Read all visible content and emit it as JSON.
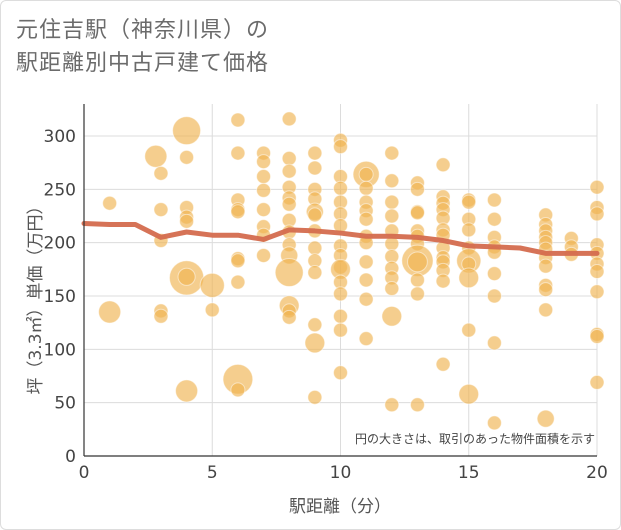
{
  "chart_data": {
    "type": "scatter",
    "title_line1": "元住吉駅（神奈川県）の",
    "title_line2": "駅距離別中古戸建て価格",
    "xlabel": "駅距離（分）",
    "ylabel": "坪（3.3㎡）単価（万円）",
    "annotation": "円の大きさは、取引のあった物件面積を示す",
    "xlim": [
      0,
      20
    ],
    "ylim": [
      0,
      330
    ],
    "xticks": [
      0,
      5,
      10,
      15,
      20
    ],
    "yticks": [
      0,
      50,
      100,
      150,
      200,
      250,
      300
    ],
    "grid": true,
    "colors": {
      "bubble": "#f0b451",
      "line": "#d46c4e"
    },
    "points": [
      [
        1,
        237,
        2
      ],
      [
        1,
        135,
        5
      ],
      [
        2.8,
        281,
        5
      ],
      [
        3,
        265,
        2
      ],
      [
        3,
        231,
        2
      ],
      [
        3,
        202,
        2
      ],
      [
        3,
        136,
        2
      ],
      [
        3,
        131,
        2
      ],
      [
        4,
        305,
        8
      ],
      [
        4,
        280,
        2
      ],
      [
        4,
        233,
        2
      ],
      [
        4,
        224,
        2
      ],
      [
        4,
        220,
        2
      ],
      [
        4,
        167,
        12
      ],
      [
        4,
        168,
        3
      ],
      [
        4,
        61,
        5
      ],
      [
        5,
        160,
        6
      ],
      [
        5,
        137,
        2
      ],
      [
        6,
        315,
        2
      ],
      [
        6,
        284,
        2
      ],
      [
        6,
        240,
        2
      ],
      [
        6,
        231,
        2
      ],
      [
        6,
        229,
        2
      ],
      [
        6,
        185,
        2
      ],
      [
        6,
        183,
        2
      ],
      [
        6,
        163,
        2
      ],
      [
        6,
        72,
        9
      ],
      [
        6,
        62,
        2
      ],
      [
        7,
        284,
        2
      ],
      [
        7,
        276,
        2
      ],
      [
        7,
        262,
        2
      ],
      [
        7,
        249,
        2
      ],
      [
        7,
        231,
        2
      ],
      [
        7,
        215,
        2
      ],
      [
        7,
        207,
        2
      ],
      [
        7,
        188,
        2
      ],
      [
        8,
        316,
        2
      ],
      [
        8,
        279,
        2
      ],
      [
        8,
        267,
        2
      ],
      [
        8,
        252,
        2
      ],
      [
        8,
        242,
        2
      ],
      [
        8,
        236,
        2
      ],
      [
        8,
        221,
        2
      ],
      [
        8,
        210,
        2
      ],
      [
        8,
        198,
        2
      ],
      [
        8,
        188,
        3
      ],
      [
        8,
        172,
        8
      ],
      [
        8,
        141,
        4
      ],
      [
        8,
        136,
        2
      ],
      [
        8,
        130,
        2
      ],
      [
        9,
        284,
        2
      ],
      [
        9,
        270,
        2
      ],
      [
        9,
        250,
        2
      ],
      [
        9,
        241,
        2
      ],
      [
        9,
        229,
        3
      ],
      [
        9,
        226,
        2
      ],
      [
        9,
        211,
        2
      ],
      [
        9,
        195,
        2
      ],
      [
        9,
        183,
        2
      ],
      [
        9,
        172,
        2
      ],
      [
        9,
        123,
        2
      ],
      [
        9,
        106,
        4
      ],
      [
        9,
        55,
        2
      ],
      [
        10,
        296,
        2
      ],
      [
        10,
        290,
        2
      ],
      [
        10,
        262,
        2
      ],
      [
        10,
        251,
        2
      ],
      [
        10,
        238,
        2
      ],
      [
        10,
        227,
        2
      ],
      [
        10,
        216,
        2
      ],
      [
        10,
        197,
        2
      ],
      [
        10,
        188,
        2
      ],
      [
        10,
        177,
        2
      ],
      [
        10,
        175,
        4
      ],
      [
        10,
        163,
        2
      ],
      [
        10,
        152,
        2
      ],
      [
        10,
        131,
        2
      ],
      [
        10,
        118,
        2
      ],
      [
        10,
        78,
        2
      ],
      [
        11,
        264,
        7
      ],
      [
        11,
        264,
        2
      ],
      [
        11,
        251,
        2
      ],
      [
        11,
        238,
        2
      ],
      [
        11,
        230,
        2
      ],
      [
        11,
        222,
        2
      ],
      [
        11,
        206,
        2
      ],
      [
        11,
        200,
        2
      ],
      [
        11,
        182,
        2
      ],
      [
        11,
        165,
        2
      ],
      [
        11,
        147,
        2
      ],
      [
        11,
        110,
        2
      ],
      [
        12,
        284,
        2
      ],
      [
        12,
        258,
        2
      ],
      [
        12,
        238,
        2
      ],
      [
        12,
        225,
        2
      ],
      [
        12,
        211,
        2
      ],
      [
        12,
        199,
        2
      ],
      [
        12,
        187,
        2
      ],
      [
        12,
        176,
        2
      ],
      [
        12,
        167,
        2
      ],
      [
        12,
        157,
        2
      ],
      [
        12,
        131,
        4
      ],
      [
        12,
        48,
        2
      ],
      [
        13,
        256,
        2
      ],
      [
        13,
        250,
        2
      ],
      [
        13,
        229,
        2
      ],
      [
        13,
        228,
        2
      ],
      [
        13,
        211,
        2
      ],
      [
        13,
        206,
        2
      ],
      [
        13,
        199,
        2
      ],
      [
        13,
        183,
        10
      ],
      [
        13,
        182,
        4
      ],
      [
        13,
        165,
        2
      ],
      [
        13,
        152,
        2
      ],
      [
        13,
        48,
        2
      ],
      [
        14,
        273,
        2
      ],
      [
        14,
        243,
        2
      ],
      [
        14,
        237,
        2
      ],
      [
        14,
        231,
        2
      ],
      [
        14,
        223,
        2
      ],
      [
        14,
        212,
        2
      ],
      [
        14,
        207,
        2
      ],
      [
        14,
        195,
        2
      ],
      [
        14,
        186,
        2
      ],
      [
        14,
        182,
        2
      ],
      [
        14,
        174,
        2
      ],
      [
        14,
        164,
        2
      ],
      [
        14,
        86,
        2
      ],
      [
        15,
        240,
        2
      ],
      [
        15,
        238,
        2
      ],
      [
        15,
        222,
        2
      ],
      [
        15,
        212,
        2
      ],
      [
        15,
        195,
        2
      ],
      [
        15,
        183,
        6
      ],
      [
        15,
        180,
        2
      ],
      [
        15,
        167,
        4
      ],
      [
        15,
        118,
        2
      ],
      [
        15,
        58,
        4
      ],
      [
        16,
        240,
        2
      ],
      [
        16,
        222,
        2
      ],
      [
        16,
        205,
        2
      ],
      [
        16,
        196,
        2
      ],
      [
        16,
        191,
        2
      ],
      [
        16,
        171,
        2
      ],
      [
        16,
        150,
        2
      ],
      [
        16,
        106,
        2
      ],
      [
        16,
        31,
        2
      ],
      [
        18,
        226,
        2
      ],
      [
        18,
        217,
        2
      ],
      [
        18,
        211,
        2
      ],
      [
        18,
        205,
        2
      ],
      [
        18,
        200,
        2
      ],
      [
        18,
        194,
        2
      ],
      [
        18,
        186,
        2
      ],
      [
        18,
        178,
        2
      ],
      [
        18,
        160,
        2
      ],
      [
        18,
        156,
        2
      ],
      [
        18,
        137,
        2
      ],
      [
        18,
        35,
        3
      ],
      [
        19,
        204,
        2
      ],
      [
        19,
        196,
        2
      ],
      [
        19,
        189,
        2
      ],
      [
        20,
        252,
        2
      ],
      [
        20,
        233,
        2
      ],
      [
        20,
        227,
        2
      ],
      [
        20,
        198,
        2
      ],
      [
        20,
        190,
        2
      ],
      [
        20,
        180,
        2
      ],
      [
        20,
        173,
        2
      ],
      [
        20,
        154,
        2
      ],
      [
        20,
        114,
        2
      ],
      [
        20,
        112,
        2
      ],
      [
        20,
        69,
        2
      ]
    ],
    "trend": {
      "x": [
        0,
        1,
        2,
        3,
        4,
        5,
        6,
        7,
        8,
        9,
        10,
        11,
        12,
        13,
        14,
        15,
        16,
        17,
        18,
        19,
        20
      ],
      "y": [
        218,
        217,
        217,
        205,
        210,
        207,
        207,
        203,
        212,
        211,
        209,
        206,
        206,
        205,
        202,
        197,
        196,
        195,
        190,
        190,
        190
      ]
    }
  }
}
